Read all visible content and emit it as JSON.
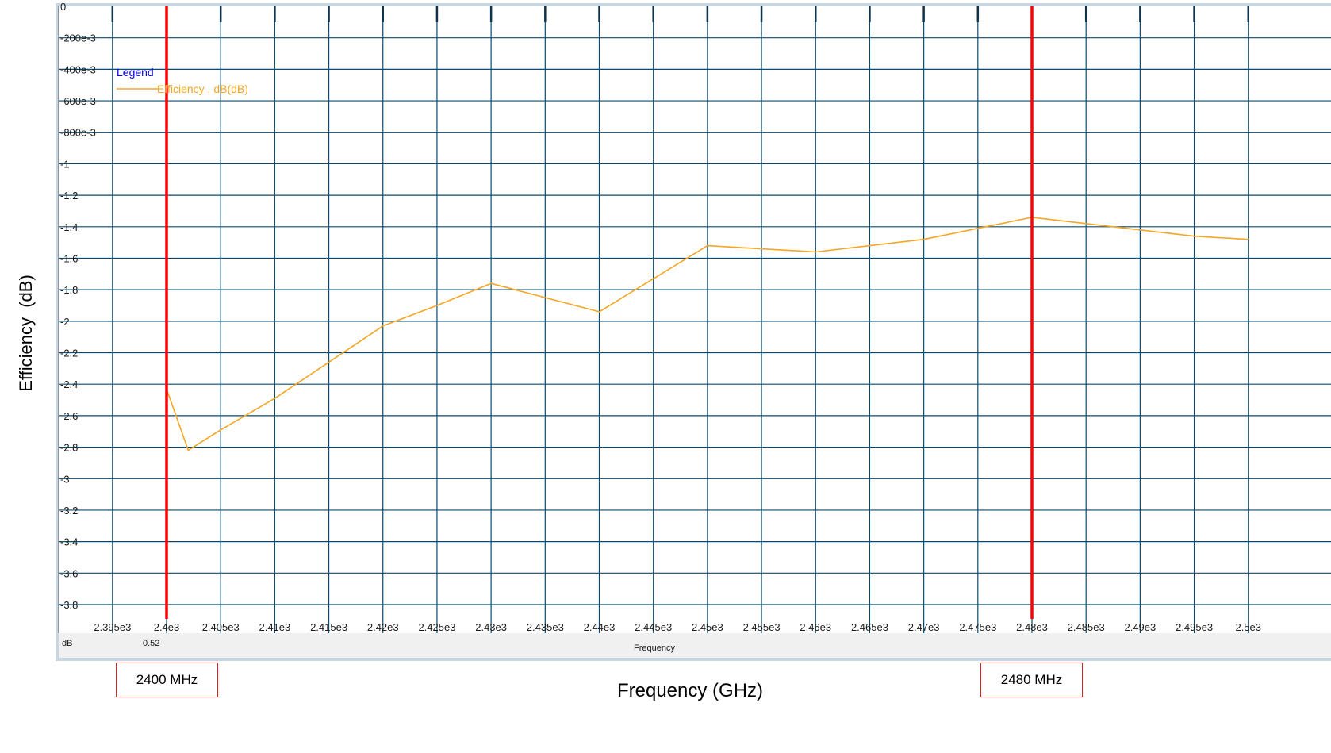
{
  "chart_data": {
    "type": "line",
    "series": [
      {
        "name": "Efficiency . dB(dB)",
        "color": "#f5a623",
        "x": [
          2400,
          2402,
          2405,
          2410,
          2415,
          2420,
          2425,
          2430,
          2435,
          2440,
          2445,
          2450,
          2455,
          2460,
          2465,
          2470,
          2475,
          2480,
          2485,
          2490,
          2495,
          2500
        ],
        "y": [
          -2.43,
          -2.82,
          -2.69,
          -2.49,
          -2.26,
          -2.03,
          -1.9,
          -1.76,
          -1.85,
          -1.94,
          -1.73,
          -1.52,
          -1.54,
          -1.56,
          -1.52,
          -1.48,
          -1.41,
          -1.34,
          -1.38,
          -1.42,
          -1.46,
          -1.48
        ]
      }
    ],
    "xlim": [
      2392.5,
      2502.5
    ],
    "ylim": [
      -3.9,
      0
    ],
    "x_ticks": [
      2395,
      2400,
      2405,
      2410,
      2415,
      2420,
      2425,
      2430,
      2435,
      2440,
      2445,
      2450,
      2455,
      2460,
      2465,
      2470,
      2475,
      2480,
      2485,
      2490,
      2495,
      2500
    ],
    "x_tick_labels": [
      "2.395e3",
      "2.4e3",
      "2.405e3",
      "2.41e3",
      "2.415e3",
      "2.42e3",
      "2.425e3",
      "2.43e3",
      "2.435e3",
      "2.44e3",
      "2.445e3",
      "2.45e3",
      "2.455e3",
      "2.46e3",
      "2.465e3",
      "2.47e3",
      "2.475e3",
      "2.48e3",
      "2.485e3",
      "2.49e3",
      "2.495e3",
      "2.5e3"
    ],
    "y_ticks": [
      0,
      -0.2,
      -0.4,
      -0.6,
      -0.8,
      -1,
      -1.2,
      -1.4,
      -1.6,
      -1.8,
      -2,
      -2.2,
      -2.4,
      -2.6,
      -2.8,
      -3,
      -3.2,
      -3.4,
      -3.6,
      -3.8
    ],
    "y_tick_labels": [
      "0",
      "-200e-3",
      "-400e-3",
      "-600e-3",
      "-800e-3",
      "-1",
      "-1.2",
      "-1.4",
      "-1.6",
      "-1.8",
      "-2",
      "-2.2",
      "-2.4",
      "-2.6",
      "-2.8",
      "-3",
      "-3.2",
      "-3.4",
      "-3.6",
      "-3.8"
    ],
    "grid": true,
    "legend": {
      "title": "Legend",
      "position": "top-left"
    },
    "inner_xlabel": "Frequency",
    "inner_ylabel_unit": "dB",
    "readout_value": "0.52",
    "xlabel": "Frequency (GHz)",
    "ylabel": "Efficiency  (dB)",
    "markers": [
      {
        "x": 2400,
        "label": "2400 MHz"
      },
      {
        "x": 2480,
        "label": "2480 MHz"
      }
    ]
  },
  "colors": {
    "grid": "#0b4a6e",
    "plot_bg": "#ffffff",
    "frame": "#9fb8cc",
    "footer_bg": "#f0f0f0",
    "legend_title": "#0000ff",
    "marker": "#ff0000"
  }
}
